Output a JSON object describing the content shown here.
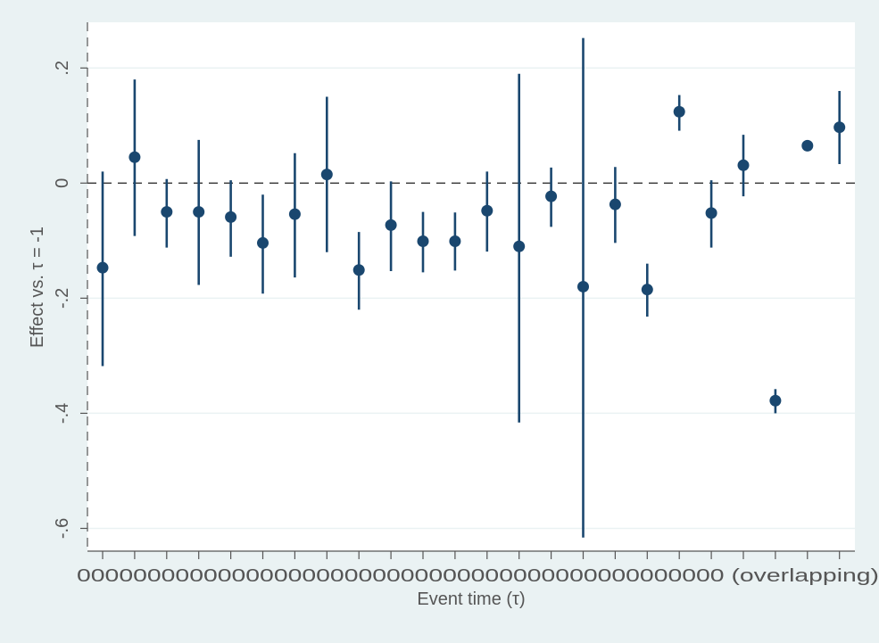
{
  "chart_data": {
    "type": "scatter",
    "title": "",
    "xlabel": "Event time (τ)",
    "ylabel": "Effect vs. τ = -1",
    "ylim": [
      -0.61,
      0.28
    ],
    "yticks": [
      {
        "value": 0.2,
        "label": ".2"
      },
      {
        "value": 0,
        "label": "0"
      },
      {
        "value": -0.2,
        "label": "-.2"
      },
      {
        "value": -0.4,
        "label": "-.4"
      },
      {
        "value": -0.6,
        "label": "-.6"
      }
    ],
    "grid": true,
    "reference_line": {
      "y": 0,
      "style": "dashed"
    },
    "x_tick_labels_note": "Tick labels are overlapping and illegible in the original",
    "x_tick_labels_display": "0000000000000000000000000000000000000000000000 (overlapping)",
    "colors": {
      "marker": "#1a476f",
      "background": "#eaf2f3",
      "plot_background": "#ffffff",
      "grid": "#eaf2f3"
    },
    "series": [
      {
        "points": [
          {
            "x": 1,
            "y": -0.147,
            "lo": -0.318,
            "hi": 0.02
          },
          {
            "x": 2,
            "y": 0.045,
            "lo": -0.092,
            "hi": 0.18
          },
          {
            "x": 3,
            "y": -0.05,
            "lo": -0.112,
            "hi": 0.007
          },
          {
            "x": 4,
            "y": -0.05,
            "lo": -0.177,
            "hi": 0.075
          },
          {
            "x": 5,
            "y": -0.059,
            "lo": -0.128,
            "hi": 0.005
          },
          {
            "x": 6,
            "y": -0.104,
            "lo": -0.192,
            "hi": -0.02
          },
          {
            "x": 7,
            "y": -0.054,
            "lo": -0.164,
            "hi": 0.052
          },
          {
            "x": 8,
            "y": 0.015,
            "lo": -0.12,
            "hi": 0.15
          },
          {
            "x": 9,
            "y": -0.151,
            "lo": -0.22,
            "hi": -0.085
          },
          {
            "x": 10,
            "y": -0.073,
            "lo": -0.153,
            "hi": 0.003
          },
          {
            "x": 11,
            "y": -0.101,
            "lo": -0.155,
            "hi": -0.05
          },
          {
            "x": 12,
            "y": -0.101,
            "lo": -0.152,
            "hi": -0.051
          },
          {
            "x": 13,
            "y": -0.048,
            "lo": -0.119,
            "hi": 0.02
          },
          {
            "x": 14,
            "y": -0.11,
            "lo": -0.416,
            "hi": 0.19
          },
          {
            "x": 15,
            "y": -0.023,
            "lo": -0.076,
            "hi": 0.027
          },
          {
            "x": 16,
            "y": -0.18,
            "lo": -0.616,
            "hi": 0.252
          },
          {
            "x": 17,
            "y": -0.037,
            "lo": -0.104,
            "hi": 0.028
          },
          {
            "x": 18,
            "y": -0.185,
            "lo": -0.232,
            "hi": -0.14
          },
          {
            "x": 19,
            "y": 0.124,
            "lo": 0.091,
            "hi": 0.153
          },
          {
            "x": 20,
            "y": -0.052,
            "lo": -0.112,
            "hi": 0.005
          },
          {
            "x": 21,
            "y": 0.031,
            "lo": -0.023,
            "hi": 0.084
          },
          {
            "x": 22,
            "y": -0.378,
            "lo": -0.4,
            "hi": -0.358
          },
          {
            "x": 23,
            "y": 0.065,
            "lo": 0.065,
            "hi": 0.065
          },
          {
            "x": 24,
            "y": 0.097,
            "lo": 0.033,
            "hi": 0.16
          }
        ]
      }
    ]
  }
}
